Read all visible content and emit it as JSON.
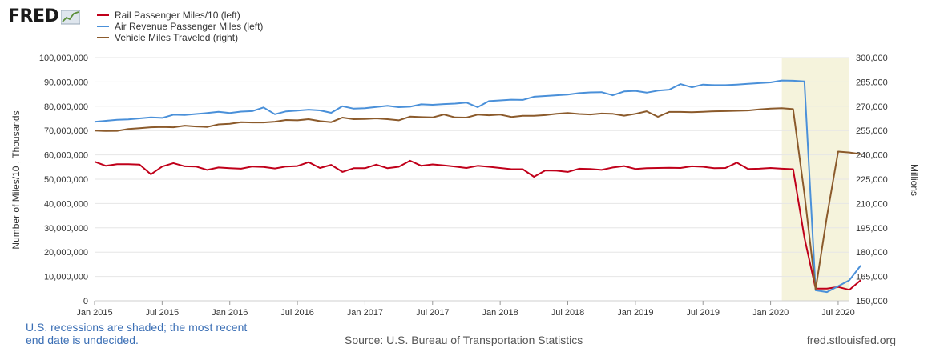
{
  "brand": {
    "name": "FRED",
    "logo_icon": "fred-line-chart-icon"
  },
  "footer": {
    "note": "U.S. recessions are shaded; the most recent end date is undecided.",
    "source": "Source: U.S. Bureau of Transportation Statistics",
    "site": "fred.stlouisfed.org"
  },
  "colors": {
    "recession_shade": "#f5f3dc",
    "grid": "#e6e6e6"
  },
  "chart_data": {
    "type": "line",
    "title": "",
    "xlabel": "",
    "ylabel_left": "Number of Miles/10 , Thousands",
    "ylabel_right": "Millions",
    "ylim_left": [
      0,
      100000000
    ],
    "ylim_right": [
      150000,
      300000
    ],
    "yticks_left": [
      0,
      10000000,
      20000000,
      30000000,
      40000000,
      50000000,
      60000000,
      70000000,
      80000000,
      90000000,
      100000000
    ],
    "yticks_right": [
      150000,
      165000,
      180000,
      195000,
      210000,
      225000,
      240000,
      255000,
      270000,
      285000,
      300000
    ],
    "x_start": "2015-01",
    "x_end": "2020-08",
    "xticks": [
      {
        "label": "Jan 2015",
        "date": "2015-01"
      },
      {
        "label": "Jul 2015",
        "date": "2015-07"
      },
      {
        "label": "Jan 2016",
        "date": "2016-01"
      },
      {
        "label": "Jul 2016",
        "date": "2016-07"
      },
      {
        "label": "Jan 2017",
        "date": "2017-01"
      },
      {
        "label": "Jul 2017",
        "date": "2017-07"
      },
      {
        "label": "Jan 2018",
        "date": "2018-01"
      },
      {
        "label": "Jul 2018",
        "date": "2018-07"
      },
      {
        "label": "Jan 2019",
        "date": "2019-01"
      },
      {
        "label": "Jul 2019",
        "date": "2019-07"
      },
      {
        "label": "Jan 2020",
        "date": "2020-01"
      },
      {
        "label": "Jul 2020",
        "date": "2020-07"
      }
    ],
    "grid": true,
    "legend_position": "top-left",
    "recession": {
      "start": "2020-02",
      "end": "2020-08"
    },
    "series": [
      {
        "name": "Rail Passenger Miles/10 (left)",
        "axis": "left",
        "color": "#c0001a",
        "values": [
          57200000,
          55500000,
          56200000,
          56200000,
          56000000,
          52000000,
          55200000,
          56600000,
          55300000,
          55200000,
          53800000,
          54800000,
          54500000,
          54300000,
          55200000,
          55000000,
          54400000,
          55200000,
          55400000,
          57000000,
          54600000,
          55900000,
          53000000,
          54500000,
          54500000,
          56000000,
          54500000,
          55100000,
          57600000,
          55500000,
          56100000,
          55700000,
          55200000,
          54600000,
          55500000,
          55100000,
          54600000,
          54100000,
          54100000,
          51000000,
          53600000,
          53500000,
          53000000,
          54300000,
          54200000,
          53800000,
          54800000,
          55400000,
          54200000,
          54500000,
          54600000,
          54700000,
          54600000,
          55300000,
          55100000,
          54500000,
          54600000,
          56800000,
          54200000,
          54300000,
          54600000,
          54300000,
          54100000,
          26000000,
          5000000,
          5000000,
          5700000,
          4500000,
          8500000
        ]
      },
      {
        "name": "Air Revenue Passenger Miles (left)",
        "axis": "left",
        "color": "#4a90d9",
        "values": [
          73600000,
          74000000,
          74400000,
          74600000,
          75000000,
          75400000,
          75200000,
          76500000,
          76400000,
          76800000,
          77200000,
          77700000,
          77200000,
          77800000,
          78000000,
          79500000,
          76700000,
          77900000,
          78200000,
          78600000,
          78300000,
          77300000,
          80000000,
          79000000,
          79200000,
          79700000,
          80200000,
          79600000,
          79800000,
          80800000,
          80600000,
          80900000,
          81100000,
          81500000,
          79600000,
          82100000,
          82400000,
          82700000,
          82600000,
          83900000,
          84200000,
          84500000,
          84800000,
          85400000,
          85700000,
          85800000,
          84500000,
          86100000,
          86300000,
          85600000,
          86400000,
          86800000,
          89100000,
          87800000,
          88900000,
          88700000,
          88700000,
          88900000,
          89200000,
          89500000,
          89800000,
          90600000,
          90500000,
          90200000,
          4300000,
          3600000,
          6000000,
          8500000,
          14500000
        ]
      },
      {
        "name": "Vehicle Miles Traveled (right)",
        "axis": "right",
        "color": "#8b5a2b",
        "values": [
          255000,
          254700,
          254800,
          256000,
          256500,
          257000,
          257200,
          257000,
          258000,
          257500,
          257200,
          258800,
          259200,
          260200,
          260000,
          260000,
          260500,
          261500,
          261300,
          262000,
          260800,
          260200,
          263000,
          262000,
          262100,
          262500,
          262000,
          261300,
          263600,
          263300,
          263100,
          264900,
          263100,
          263000,
          264800,
          264400,
          264800,
          263400,
          264100,
          264100,
          264500,
          265300,
          265800,
          265200,
          264900,
          265500,
          265300,
          264200,
          265300,
          266900,
          263500,
          266500,
          266500,
          266300,
          266600,
          266900,
          267000,
          267200,
          267400,
          268100,
          268500,
          268800,
          268200,
          216000,
          157000,
          202000,
          242000,
          241500,
          240500
        ]
      }
    ]
  }
}
